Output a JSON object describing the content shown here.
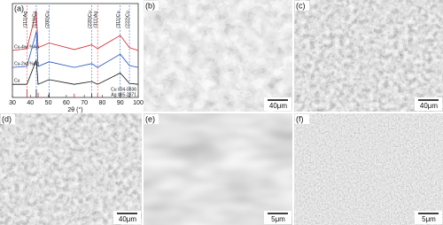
{
  "chart_data": {
    "type": "line",
    "panel_label": "(a)",
    "xlabel": "2θ (°)",
    "x": [
      30,
      38.1,
      43.3,
      44.3,
      50.4,
      64.4,
      74.1,
      77.4,
      90,
      95.1,
      100
    ],
    "xlim": [
      30,
      100
    ],
    "xticks": [
      30,
      40,
      50,
      60,
      70,
      80,
      90,
      100
    ],
    "ylim": [
      0,
      100
    ],
    "series": [
      {
        "name": "Cu-4wt.%Ag",
        "color": "#d62728",
        "values": [
          50,
          52,
          92,
          53,
          58,
          51,
          56,
          52,
          66,
          53,
          50
        ]
      },
      {
        "name": "Cu-2wt.%Ag",
        "color": "#1f4fbf",
        "values": [
          32,
          33,
          70,
          33,
          38,
          32,
          36,
          32,
          46,
          34,
          32
        ]
      },
      {
        "name": "Cu",
        "color": "#111111",
        "values": [
          14,
          14,
          40,
          14,
          19,
          14,
          17,
          14,
          26,
          15,
          14
        ]
      }
    ],
    "references": [
      {
        "name": "Ag #65-2871",
        "color": "#d62728",
        "x": [
          38.1,
          44.3,
          64.4,
          77.4
        ],
        "values": [
          9,
          5,
          4,
          4
        ]
      },
      {
        "name": "Cu #04-0836",
        "color": "#111111",
        "x": [
          43.3,
          50.4,
          74.1,
          90,
          95.1
        ],
        "values": [
          9,
          5,
          4,
          4,
          3
        ]
      }
    ],
    "annotations": [
      {
        "text": "(111)Ag",
        "x": 38.1,
        "color": "#d62728"
      },
      {
        "text": "(111)Cu",
        "x": 43.3,
        "color": "#1f4fbf"
      },
      {
        "text": "(200)Cu",
        "x": 50.4,
        "color": "#1f4fbf"
      },
      {
        "text": "(220)Cu",
        "x": 74.1,
        "color": "#1f4fbf"
      },
      {
        "text": "(311)Ag",
        "x": 77.4,
        "color": "#d62728"
      },
      {
        "text": "(311)Cu",
        "x": 90,
        "color": "#1f4fbf"
      },
      {
        "text": "(222)Cu",
        "x": 95.1,
        "color": "#1f4fbf"
      }
    ]
  },
  "panels": [
    {
      "label": "(b)",
      "scale": "40μm"
    },
    {
      "label": "(c)",
      "scale": "40μm"
    },
    {
      "label": "(d)",
      "scale": "40μm"
    },
    {
      "label": "(e)",
      "scale": "5μm"
    },
    {
      "label": "(f)",
      "scale": "5μm"
    }
  ]
}
